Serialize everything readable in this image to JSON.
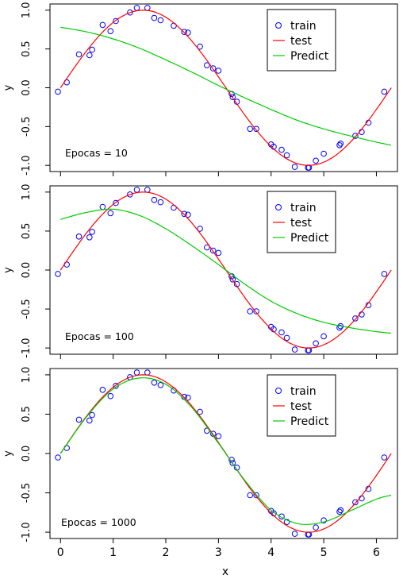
{
  "figure": {
    "xlabel": "x",
    "ylabel": "y",
    "colors": {
      "train": "#0000ff",
      "test": "#ff0000",
      "predict": "#00cc00"
    }
  },
  "chart_data": [
    {
      "type": "scatter",
      "annotation": "Epocas = 10",
      "xlabel": "",
      "ylabel": "y",
      "xlim": [
        -0.2,
        6.4
      ],
      "ylim": [
        -1.08,
        1.08
      ],
      "yticks": [
        -1.0,
        -0.5,
        0.0,
        0.5,
        1.0
      ],
      "ytick_labels": [
        "-1.0",
        "-0.5",
        "0.0",
        "0.5",
        "1.0"
      ],
      "xticks": [
        0,
        1,
        2,
        3,
        4,
        5,
        6
      ],
      "xtick_labels": [],
      "legend": {
        "position": "top-right",
        "entries": [
          "train",
          "test",
          "Predict"
        ]
      },
      "series": [
        {
          "name": "train",
          "kind": "points",
          "x": [
            -0.05,
            0.12,
            0.35,
            0.55,
            0.6,
            0.8,
            0.95,
            1.05,
            1.32,
            1.45,
            1.65,
            1.78,
            1.9,
            2.15,
            2.35,
            2.42,
            2.65,
            2.78,
            2.9,
            3.0,
            3.25,
            3.27,
            3.35,
            3.6,
            3.72,
            4.0,
            4.05,
            4.2,
            4.3,
            4.45,
            4.7,
            4.72,
            4.85,
            5.0,
            5.3,
            5.32,
            5.6,
            5.72,
            5.85,
            6.15
          ],
          "y": [
            -0.05,
            0.07,
            0.43,
            0.42,
            0.49,
            0.81,
            0.73,
            0.86,
            0.97,
            1.03,
            1.03,
            0.9,
            0.87,
            0.8,
            0.72,
            0.71,
            0.53,
            0.29,
            0.25,
            0.22,
            -0.08,
            -0.12,
            -0.18,
            -0.53,
            -0.53,
            -0.73,
            -0.76,
            -0.8,
            -0.87,
            -1.02,
            -1.03,
            -1.03,
            -0.94,
            -0.85,
            -0.74,
            -0.72,
            -0.62,
            -0.57,
            -0.45,
            -0.05
          ]
        },
        {
          "name": "test",
          "kind": "line",
          "function": "sin",
          "x": [
            0.0,
            0.5,
            1.0,
            1.5,
            2.0,
            2.5,
            3.0,
            3.5,
            4.0,
            4.5,
            5.0,
            5.5,
            6.0,
            6.28
          ],
          "y": [
            0.0,
            0.479,
            0.841,
            0.997,
            0.909,
            0.598,
            0.141,
            -0.351,
            -0.757,
            -0.978,
            -0.959,
            -0.706,
            -0.279,
            0.0
          ]
        },
        {
          "name": "Predict",
          "kind": "line",
          "x": [
            0.0,
            0.5,
            1.0,
            1.5,
            2.0,
            2.5,
            3.0,
            3.5,
            4.0,
            4.5,
            5.0,
            5.5,
            6.0,
            6.28
          ],
          "y": [
            0.78,
            0.72,
            0.63,
            0.51,
            0.36,
            0.2,
            0.03,
            -0.13,
            -0.28,
            -0.42,
            -0.53,
            -0.62,
            -0.7,
            -0.74
          ]
        }
      ]
    },
    {
      "type": "scatter",
      "annotation": "Epocas = 100",
      "xlabel": "",
      "ylabel": "y",
      "xlim": [
        -0.2,
        6.4
      ],
      "ylim": [
        -1.08,
        1.08
      ],
      "yticks": [
        -1.0,
        -0.5,
        0.0,
        0.5,
        1.0
      ],
      "ytick_labels": [
        "-1.0",
        "-0.5",
        "0.0",
        "0.5",
        "1.0"
      ],
      "xticks": [
        0,
        1,
        2,
        3,
        4,
        5,
        6
      ],
      "xtick_labels": [],
      "legend": {
        "position": "top-right",
        "entries": [
          "train",
          "test",
          "Predict"
        ]
      },
      "series": [
        {
          "name": "train",
          "kind": "points",
          "x": [
            -0.05,
            0.12,
            0.35,
            0.55,
            0.6,
            0.8,
            0.95,
            1.05,
            1.32,
            1.45,
            1.65,
            1.78,
            1.9,
            2.15,
            2.35,
            2.42,
            2.65,
            2.78,
            2.9,
            3.0,
            3.25,
            3.27,
            3.35,
            3.6,
            3.72,
            4.0,
            4.05,
            4.2,
            4.3,
            4.45,
            4.7,
            4.72,
            4.85,
            5.0,
            5.3,
            5.32,
            5.6,
            5.72,
            5.85,
            6.15
          ],
          "y": [
            -0.05,
            0.07,
            0.43,
            0.42,
            0.49,
            0.81,
            0.73,
            0.86,
            0.97,
            1.03,
            1.03,
            0.9,
            0.87,
            0.8,
            0.72,
            0.71,
            0.53,
            0.29,
            0.25,
            0.22,
            -0.08,
            -0.12,
            -0.18,
            -0.53,
            -0.53,
            -0.73,
            -0.76,
            -0.8,
            -0.87,
            -1.02,
            -1.03,
            -1.03,
            -0.94,
            -0.85,
            -0.74,
            -0.72,
            -0.62,
            -0.57,
            -0.45,
            -0.05
          ]
        },
        {
          "name": "test",
          "kind": "line",
          "function": "sin",
          "x": [
            0.0,
            0.5,
            1.0,
            1.5,
            2.0,
            2.5,
            3.0,
            3.5,
            4.0,
            4.5,
            5.0,
            5.5,
            6.0,
            6.28
          ],
          "y": [
            0.0,
            0.479,
            0.841,
            0.997,
            0.909,
            0.598,
            0.141,
            -0.351,
            -0.757,
            -0.978,
            -0.959,
            -0.706,
            -0.279,
            0.0
          ]
        },
        {
          "name": "Predict",
          "kind": "line",
          "x": [
            0.0,
            0.5,
            1.0,
            1.5,
            2.0,
            2.5,
            3.0,
            3.5,
            4.0,
            4.5,
            5.0,
            5.5,
            6.0,
            6.28
          ],
          "y": [
            0.65,
            0.74,
            0.78,
            0.7,
            0.53,
            0.31,
            0.07,
            -0.18,
            -0.4,
            -0.56,
            -0.67,
            -0.74,
            -0.79,
            -0.81
          ]
        }
      ]
    },
    {
      "type": "scatter",
      "annotation": "Epocas = 1000",
      "xlabel": "x",
      "ylabel": "y",
      "xlim": [
        -0.2,
        6.4
      ],
      "ylim": [
        -1.08,
        1.08
      ],
      "yticks": [
        -1.0,
        -0.5,
        0.0,
        0.5,
        1.0
      ],
      "ytick_labels": [
        "-1.0",
        "-0.5",
        "0.0",
        "0.5",
        "1.0"
      ],
      "xticks": [
        0,
        1,
        2,
        3,
        4,
        5,
        6
      ],
      "xtick_labels": [
        "0",
        "1",
        "2",
        "3",
        "4",
        "5",
        "6"
      ],
      "legend": {
        "position": "top-right",
        "entries": [
          "train",
          "test",
          "Predict"
        ]
      },
      "series": [
        {
          "name": "train",
          "kind": "points",
          "x": [
            -0.05,
            0.12,
            0.35,
            0.55,
            0.6,
            0.8,
            0.95,
            1.05,
            1.32,
            1.45,
            1.65,
            1.78,
            1.9,
            2.15,
            2.35,
            2.42,
            2.65,
            2.78,
            2.9,
            3.0,
            3.25,
            3.27,
            3.35,
            3.6,
            3.72,
            4.0,
            4.05,
            4.2,
            4.3,
            4.45,
            4.7,
            4.72,
            4.85,
            5.0,
            5.3,
            5.32,
            5.6,
            5.72,
            5.85,
            6.15
          ],
          "y": [
            -0.05,
            0.07,
            0.43,
            0.42,
            0.49,
            0.81,
            0.73,
            0.86,
            0.97,
            1.03,
            1.03,
            0.9,
            0.87,
            0.8,
            0.72,
            0.71,
            0.53,
            0.29,
            0.25,
            0.22,
            -0.08,
            -0.12,
            -0.18,
            -0.53,
            -0.53,
            -0.73,
            -0.76,
            -0.8,
            -0.87,
            -1.02,
            -1.03,
            -1.03,
            -0.94,
            -0.85,
            -0.74,
            -0.72,
            -0.62,
            -0.57,
            -0.45,
            -0.05
          ]
        },
        {
          "name": "test",
          "kind": "line",
          "function": "sin",
          "x": [
            0.0,
            0.5,
            1.0,
            1.5,
            2.0,
            2.5,
            3.0,
            3.5,
            4.0,
            4.5,
            5.0,
            5.5,
            6.0,
            6.28
          ],
          "y": [
            0.0,
            0.479,
            0.841,
            0.997,
            0.909,
            0.598,
            0.141,
            -0.351,
            -0.757,
            -0.978,
            -0.959,
            -0.706,
            -0.279,
            0.0
          ]
        },
        {
          "name": "Predict",
          "kind": "line",
          "x": [
            0.0,
            0.5,
            1.0,
            1.5,
            2.0,
            2.5,
            3.0,
            3.5,
            4.0,
            4.5,
            5.0,
            5.5,
            6.0,
            6.28
          ],
          "y": [
            0.0,
            0.47,
            0.82,
            0.96,
            0.88,
            0.58,
            0.13,
            -0.34,
            -0.72,
            -0.89,
            -0.87,
            -0.73,
            -0.58,
            -0.53
          ]
        }
      ]
    }
  ]
}
